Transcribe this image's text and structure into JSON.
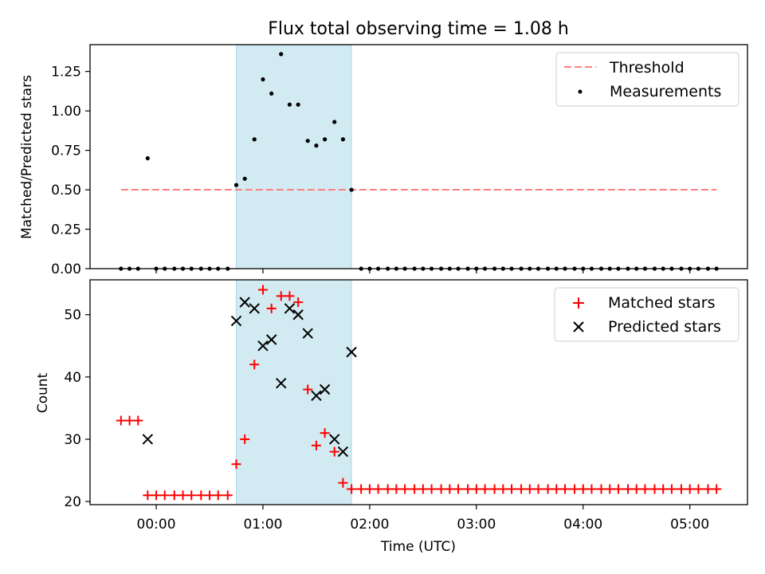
{
  "chart_data": [
    {
      "type": "scatter",
      "title": "Flux total observing time = 1.08 h",
      "xlabel": "",
      "ylabel": "Matched/Predicted stars",
      "xlim": [
        -0.62,
        5.54
      ],
      "ylim": [
        0.0,
        1.42
      ],
      "yticks": [
        0.0,
        0.25,
        0.5,
        0.75,
        1.0,
        1.25
      ],
      "ytick_labels": [
        "0.00",
        "0.25",
        "0.50",
        "0.75",
        "1.00",
        "1.25"
      ],
      "xticks": [
        0,
        1,
        2,
        3,
        4,
        5
      ],
      "shaded_span": [
        0.75,
        1.83
      ],
      "legend": {
        "position": "top-right",
        "entries": [
          "Threshold",
          "Measurements"
        ]
      },
      "threshold": {
        "name": "Threshold",
        "value": 0.5,
        "x": [
          -0.33,
          5.25
        ],
        "color": "#ff7f7f"
      },
      "series": [
        {
          "name": "Measurements",
          "x": [
            -0.33,
            -0.25,
            -0.17,
            -0.08,
            0.0,
            0.08,
            0.17,
            0.25,
            0.33,
            0.42,
            0.5,
            0.58,
            0.67,
            0.75,
            0.83,
            0.92,
            1.0,
            1.08,
            1.17,
            1.25,
            1.33,
            1.42,
            1.5,
            1.58,
            1.67,
            1.75,
            1.83,
            1.92,
            2.0,
            2.08,
            2.17,
            2.25,
            2.33,
            2.42,
            2.5,
            2.58,
            2.67,
            2.75,
            2.83,
            2.92,
            3.0,
            3.08,
            3.17,
            3.25,
            3.33,
            3.42,
            3.5,
            3.58,
            3.67,
            3.75,
            3.83,
            3.92,
            4.0,
            4.08,
            4.17,
            4.25,
            4.33,
            4.42,
            4.5,
            4.58,
            4.67,
            4.75,
            4.83,
            4.92,
            5.0,
            5.08,
            5.17,
            5.25
          ],
          "y": [
            0,
            0,
            0,
            0.7,
            0,
            0,
            0,
            0,
            0,
            0,
            0,
            0,
            0,
            0.53,
            0.57,
            0.82,
            1.2,
            1.11,
            1.36,
            1.04,
            1.04,
            0.81,
            0.78,
            0.82,
            0.93,
            0.82,
            0.5,
            0,
            0,
            0,
            0,
            0,
            0,
            0,
            0,
            0,
            0,
            0,
            0,
            0,
            0,
            0,
            0,
            0,
            0,
            0,
            0,
            0,
            0,
            0,
            0,
            0,
            0,
            0,
            0,
            0,
            0,
            0,
            0,
            0,
            0,
            0,
            0,
            0,
            0,
            0,
            0,
            0
          ]
        }
      ]
    },
    {
      "type": "scatter",
      "title": "",
      "xlabel": "Time (UTC)",
      "ylabel": "Count",
      "xlim": [
        -0.62,
        5.54
      ],
      "ylim": [
        19.5,
        55.6
      ],
      "yticks": [
        20,
        30,
        40,
        50
      ],
      "ytick_labels": [
        "20",
        "30",
        "40",
        "50"
      ],
      "xticks": [
        0,
        1,
        2,
        3,
        4,
        5
      ],
      "xtick_labels": [
        "00:00",
        "01:00",
        "02:00",
        "03:00",
        "04:00",
        "05:00"
      ],
      "shaded_span": [
        0.75,
        1.83
      ],
      "legend": {
        "position": "top-right",
        "entries": [
          "Matched stars",
          "Predicted stars"
        ]
      },
      "series": [
        {
          "name": "Matched stars",
          "marker": "plus",
          "color": "#ff0000",
          "x": [
            -0.33,
            -0.25,
            -0.17,
            -0.08,
            0.0,
            0.08,
            0.17,
            0.25,
            0.33,
            0.42,
            0.5,
            0.58,
            0.67,
            0.75,
            0.83,
            0.92,
            1.0,
            1.08,
            1.17,
            1.25,
            1.33,
            1.42,
            1.5,
            1.58,
            1.67,
            1.75,
            1.83,
            1.92,
            2.0,
            2.08,
            2.17,
            2.25,
            2.33,
            2.42,
            2.5,
            2.58,
            2.67,
            2.75,
            2.83,
            2.92,
            3.0,
            3.08,
            3.17,
            3.25,
            3.33,
            3.42,
            3.5,
            3.58,
            3.67,
            3.75,
            3.83,
            3.92,
            4.0,
            4.08,
            4.17,
            4.25,
            4.33,
            4.42,
            4.5,
            4.58,
            4.67,
            4.75,
            4.83,
            4.92,
            5.0,
            5.08,
            5.17,
            5.25
          ],
          "y": [
            33,
            33,
            33,
            21,
            21,
            21,
            21,
            21,
            21,
            21,
            21,
            21,
            21,
            26,
            30,
            42,
            54,
            51,
            53,
            53,
            52,
            38,
            29,
            31,
            28,
            23,
            22,
            22,
            22,
            22,
            22,
            22,
            22,
            22,
            22,
            22,
            22,
            22,
            22,
            22,
            22,
            22,
            22,
            22,
            22,
            22,
            22,
            22,
            22,
            22,
            22,
            22,
            22,
            22,
            22,
            22,
            22,
            22,
            22,
            22,
            22,
            22,
            22,
            22,
            22,
            22,
            22,
            22
          ]
        },
        {
          "name": "Predicted stars",
          "marker": "x",
          "color": "#000000",
          "x": [
            -0.08,
            0.75,
            0.83,
            0.92,
            1.0,
            1.08,
            1.17,
            1.25,
            1.33,
            1.42,
            1.5,
            1.58,
            1.67,
            1.75,
            1.83
          ],
          "y": [
            30,
            49,
            52,
            51,
            45,
            46,
            39,
            51,
            50,
            47,
            37,
            38,
            30,
            28,
            44
          ]
        }
      ]
    }
  ]
}
